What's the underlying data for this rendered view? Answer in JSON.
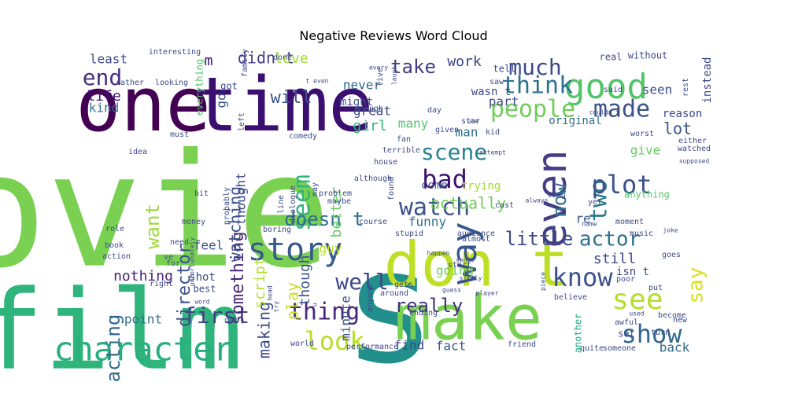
{
  "chart_data": {
    "type": "wordcloud",
    "title": "Negative Reviews Word Cloud",
    "colormap": "viridis",
    "background": "#ffffff",
    "words": [
      {
        "text": "movie",
        "color": "#7ad151"
      },
      {
        "text": "s",
        "color": "#21908d"
      },
      {
        "text": "one",
        "color": "#440154"
      },
      {
        "text": "time",
        "color": "#3b0f70"
      },
      {
        "text": "film",
        "color": "#2fb47c"
      },
      {
        "text": "don t",
        "color": "#bddf26"
      },
      {
        "text": "make",
        "color": "#7ad151"
      },
      {
        "text": "character",
        "color": "#29af7f"
      },
      {
        "text": "good",
        "color": "#52c569"
      },
      {
        "text": "people",
        "color": "#6ece58"
      },
      {
        "text": "made",
        "color": "#3b528b"
      },
      {
        "text": "even",
        "color": "#433e85"
      },
      {
        "text": "story",
        "color": "#38598c"
      },
      {
        "text": "bad",
        "color": "#3b0f70"
      },
      {
        "text": "think",
        "color": "#2c728e"
      },
      {
        "text": "much",
        "color": "#3e4a89"
      },
      {
        "text": "two",
        "color": "#2a788e"
      },
      {
        "text": "watch",
        "color": "#3b528b"
      },
      {
        "text": "way",
        "color": "#39568c"
      },
      {
        "text": "scene",
        "color": "#26828e"
      },
      {
        "text": "see",
        "color": "#b5de2b"
      },
      {
        "text": "seem",
        "color": "#2fb47c"
      },
      {
        "text": "thing",
        "color": "#482677"
      },
      {
        "text": "well",
        "color": "#3e4a89"
      },
      {
        "text": "know",
        "color": "#3b528b"
      },
      {
        "text": "actor",
        "color": "#2d708e"
      },
      {
        "text": "show",
        "color": "#31688e"
      },
      {
        "text": "look",
        "color": "#b8de29"
      },
      {
        "text": "plot",
        "color": "#3b528b"
      },
      {
        "text": "really",
        "color": "#46337e"
      },
      {
        "text": "first",
        "color": "#433e85"
      },
      {
        "text": "end",
        "color": "#472f7d"
      },
      {
        "text": "take",
        "color": "#433e85"
      },
      {
        "text": "want",
        "color": "#9dd93b"
      },
      {
        "text": "doesn t",
        "color": "#2e6e8e"
      },
      {
        "text": "say",
        "color": "#d8e219"
      },
      {
        "text": "acting",
        "color": "#31688e"
      },
      {
        "text": "little",
        "color": "#3e4a89"
      },
      {
        "text": "will",
        "color": "#3b528b"
      },
      {
        "text": "now",
        "color": "#2c728e"
      },
      {
        "text": "better",
        "color": "#63cb5f"
      },
      {
        "text": "director",
        "color": "#3b528b"
      },
      {
        "text": "something",
        "color": "#482677"
      },
      {
        "text": "didn t",
        "color": "#433e85"
      },
      {
        "text": "m",
        "color": "#3b0f70"
      },
      {
        "text": "never",
        "color": "#31688e"
      },
      {
        "text": "life",
        "color": "#3b0f70"
      },
      {
        "text": "least",
        "color": "#3e4a89"
      },
      {
        "text": "love",
        "color": "#a2da37"
      },
      {
        "text": "seen",
        "color": "#3e4a89"
      },
      {
        "text": "work",
        "color": "#404688"
      },
      {
        "text": "play",
        "color": "#c5e021"
      },
      {
        "text": "making",
        "color": "#3e4a89"
      },
      {
        "text": "actually",
        "color": "#6ece58"
      },
      {
        "text": "watching",
        "color": "#3b528b"
      },
      {
        "text": "script",
        "color": "#b5de2b"
      },
      {
        "text": "thought",
        "color": "#3e4a89"
      },
      {
        "text": "girl",
        "color": "#2fb47c"
      },
      {
        "text": "funny",
        "color": "#2d708e"
      },
      {
        "text": "great",
        "color": "#3e4a89"
      },
      {
        "text": "many",
        "color": "#52c569"
      },
      {
        "text": "part",
        "color": "#3e4a89"
      },
      {
        "text": "kind",
        "color": "#2c728e"
      },
      {
        "text": "lot",
        "color": "#3b528b"
      },
      {
        "text": "give",
        "color": "#65cb5e"
      },
      {
        "text": "go",
        "color": "#3b528b"
      },
      {
        "text": "still",
        "color": "#3e4a89"
      },
      {
        "text": "nothing",
        "color": "#482677"
      },
      {
        "text": "minute",
        "color": "#3b528b"
      },
      {
        "text": "find",
        "color": "#3e4a89"
      },
      {
        "text": "fact",
        "color": "#3b528b"
      },
      {
        "text": "back",
        "color": "#31688e"
      },
      {
        "text": "going",
        "color": "#6ece58"
      },
      {
        "text": "guy",
        "color": "#b8de29"
      },
      {
        "text": "re",
        "color": "#3b528b"
      },
      {
        "text": "come",
        "color": "#3b528b"
      },
      {
        "text": "trying",
        "color": "#a2da37"
      },
      {
        "text": "point",
        "color": "#2d708e"
      },
      {
        "text": "man",
        "color": "#2d708e"
      },
      {
        "text": "original",
        "color": "#2d708e"
      },
      {
        "text": "instead",
        "color": "#3e4a89"
      },
      {
        "text": "reason",
        "color": "#3e4a89"
      },
      {
        "text": "isn t",
        "color": "#3e4a89"
      },
      {
        "text": "another",
        "color": "#22a884"
      },
      {
        "text": "set",
        "color": "#3e4a89"
      },
      {
        "text": "anything",
        "color": "#52c569"
      },
      {
        "text": "real",
        "color": "#3e4a89"
      },
      {
        "text": "without",
        "color": "#3e4a89"
      },
      {
        "text": "feel",
        "color": "#3b528b"
      },
      {
        "text": "shot",
        "color": "#3e4a89"
      },
      {
        "text": "best",
        "color": "#3e4a89"
      },
      {
        "text": "though",
        "color": "#3b528b"
      },
      {
        "text": "might",
        "color": "#3b528b"
      },
      {
        "text": "wasn t",
        "color": "#3e4a89"
      },
      {
        "text": "interesting",
        "color": "#3e4a89"
      },
      {
        "text": "rather",
        "color": "#3e4a89"
      },
      {
        "text": "everything",
        "color": "#52c569"
      },
      {
        "text": "got",
        "color": "#3e4a89"
      },
      {
        "text": "tell",
        "color": "#3e4a89"
      },
      {
        "text": "saw",
        "color": "#3e4a89"
      },
      {
        "text": "said",
        "color": "#3e4a89"
      },
      {
        "text": "rest",
        "color": "#3e4a89"
      },
      {
        "text": "looking",
        "color": "#3e4a89"
      },
      {
        "text": "day",
        "color": "#3e4a89"
      },
      {
        "text": "comedy",
        "color": "#3e4a89"
      },
      {
        "text": "star",
        "color": "#3e4a89"
      },
      {
        "text": "kid",
        "color": "#3e4a89"
      },
      {
        "text": "idea",
        "color": "#3e4a89"
      },
      {
        "text": "bit",
        "color": "#3e4a89"
      },
      {
        "text": "long",
        "color": "#3e4a89"
      },
      {
        "text": "yet",
        "color": "#3e4a89"
      },
      {
        "text": "cast",
        "color": "#3e4a89"
      },
      {
        "text": "maybe",
        "color": "#3e4a89"
      },
      {
        "text": "found",
        "color": "#3e4a89"
      },
      {
        "text": "course",
        "color": "#3e4a89"
      },
      {
        "text": "money",
        "color": "#3e4a89"
      },
      {
        "text": "role",
        "color": "#3e4a89"
      },
      {
        "text": "need",
        "color": "#3e4a89"
      },
      {
        "text": "book",
        "color": "#3e4a89"
      },
      {
        "text": "ve",
        "color": "#3e4a89"
      },
      {
        "text": "right",
        "color": "#3e4a89"
      },
      {
        "text": "boring",
        "color": "#3e4a89"
      },
      {
        "text": "stupid",
        "color": "#3e4a89"
      },
      {
        "text": "audience",
        "color": "#3e4a89"
      },
      {
        "text": "almost",
        "color": "#3e4a89"
      },
      {
        "text": "start",
        "color": "#3e4a89"
      },
      {
        "text": "d",
        "color": "#3e4a89"
      },
      {
        "text": "gets",
        "color": "#3e4a89"
      },
      {
        "text": "around",
        "color": "#3e4a89"
      },
      {
        "text": "anyone",
        "color": "#3e4a89"
      },
      {
        "text": "ending",
        "color": "#3e4a89"
      },
      {
        "text": "performance",
        "color": "#3e4a89"
      },
      {
        "text": "world",
        "color": "#3e4a89"
      },
      {
        "text": "friend",
        "color": "#3e4a89"
      },
      {
        "text": "quite",
        "color": "#3e4a89"
      },
      {
        "text": "someone",
        "color": "#3e4a89"
      },
      {
        "text": "awful",
        "color": "#3e4a89"
      },
      {
        "text": "believe",
        "color": "#3e4a89"
      },
      {
        "text": "moment",
        "color": "#3e4a89"
      },
      {
        "text": "goes",
        "color": "#3e4a89"
      },
      {
        "text": "music",
        "color": "#3e4a89"
      },
      {
        "text": "put",
        "color": "#3e4a89"
      },
      {
        "text": "poor",
        "color": "#3e4a89"
      },
      {
        "text": "new",
        "color": "#3e4a89"
      },
      {
        "text": "turn",
        "color": "#3e4a89"
      },
      {
        "text": "become",
        "color": "#3e4a89"
      },
      {
        "text": "either",
        "color": "#3e4a89"
      },
      {
        "text": "watched",
        "color": "#3e4a89"
      },
      {
        "text": "worst",
        "color": "#3e4a89"
      },
      {
        "text": "fan",
        "color": "#3e4a89"
      },
      {
        "text": "house",
        "color": "#3e4a89"
      },
      {
        "text": "may",
        "color": "#3e4a89"
      },
      {
        "text": "line",
        "color": "#3e4a89"
      },
      {
        "text": "dialogue",
        "color": "#3e4a89"
      },
      {
        "text": "probably",
        "color": "#3e4a89"
      },
      {
        "text": "problem",
        "color": "#3e4a89"
      },
      {
        "text": "although",
        "color": "#3e4a89"
      },
      {
        "text": "terrible",
        "color": "#3e4a89"
      },
      {
        "text": "must",
        "color": "#3e4a89"
      },
      {
        "text": "for",
        "color": "#3e4a89"
      },
      {
        "text": "action",
        "color": "#3e4a89"
      },
      {
        "text": "live",
        "color": "#3e4a89"
      },
      {
        "text": "given",
        "color": "#3e4a89"
      },
      {
        "text": "left",
        "color": "#3e4a89"
      },
      {
        "text": "done",
        "color": "#3e4a89"
      },
      {
        "text": "family",
        "color": "#3e4a89"
      },
      {
        "text": "enough",
        "color": "#3e4a89"
      },
      {
        "text": "couldn t",
        "color": "#3e4a89"
      },
      {
        "text": "use",
        "color": "#3e4a89"
      },
      {
        "text": "attempt",
        "color": "#3e4a89"
      },
      {
        "text": "supposed",
        "color": "#3e4a89"
      },
      {
        "text": "always",
        "color": "#3e4a89"
      },
      {
        "text": "name",
        "color": "#3e4a89"
      },
      {
        "text": "happen",
        "color": "#3e4a89"
      },
      {
        "text": "piece",
        "color": "#3e4a89"
      },
      {
        "text": "guess",
        "color": "#3e4a89"
      },
      {
        "text": "simply",
        "color": "#3e4a89"
      },
      {
        "text": "sense",
        "color": "#3e4a89"
      },
      {
        "text": "joke",
        "color": "#3e4a89"
      },
      {
        "text": "word",
        "color": "#3e4a89"
      },
      {
        "text": "head",
        "color": "#3e4a89"
      },
      {
        "text": "every",
        "color": "#3e4a89"
      },
      {
        "text": "t even",
        "color": "#3e4a89"
      },
      {
        "text": "laugh",
        "color": "#3e4a89"
      },
      {
        "text": "player",
        "color": "#3e4a89"
      },
      {
        "text": "unfortunately",
        "color": "#3e4a89"
      },
      {
        "text": "used",
        "color": "#3e4a89"
      },
      {
        "text": "read",
        "color": "#3e4a89"
      },
      {
        "text": "try",
        "color": "#3e4a89"
      },
      {
        "text": "u",
        "color": "#3e4a89"
      },
      {
        "text": "sort",
        "color": "#3e4a89"
      },
      {
        "text": "will",
        "color": "#3e4a89"
      },
      {
        "text": "woman",
        "color": "#3e4a89"
      },
      {
        "text": "definitely",
        "color": "#3e4a89"
      },
      {
        "text": "seemed",
        "color": "#3e4a89"
      }
    ]
  }
}
